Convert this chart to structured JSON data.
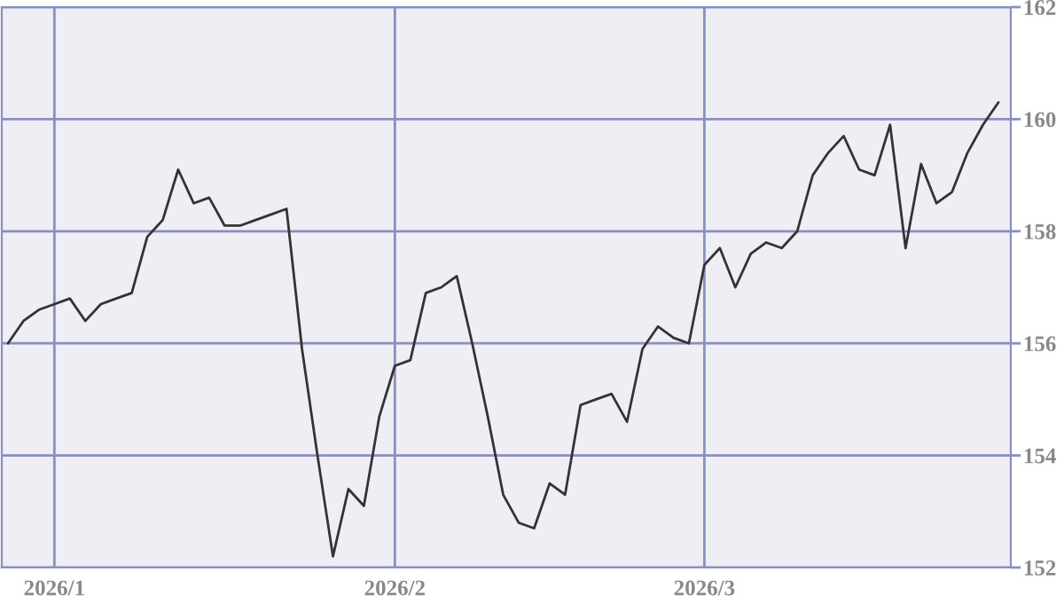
{
  "chart_data": {
    "type": "line",
    "color": "#333333",
    "categories": [
      null,
      null,
      null,
      "2026/1",
      null,
      null,
      null,
      null,
      null,
      null,
      null,
      null,
      null,
      null,
      null,
      null,
      null,
      null,
      null,
      null,
      null,
      null,
      null,
      null,
      null,
      "2026/2",
      null,
      null,
      null,
      null,
      null,
      null,
      null,
      null,
      null,
      null,
      null,
      null,
      null,
      null,
      null,
      null,
      null,
      null,
      null,
      "2026/3",
      null,
      null,
      null,
      null,
      null,
      null,
      null,
      null,
      null,
      null,
      null,
      null,
      null,
      null,
      null,
      null,
      null,
      null,
      null
    ],
    "values": [
      156.0,
      156.4,
      156.6,
      156.7,
      156.8,
      156.4,
      156.7,
      156.8,
      156.9,
      157.9,
      158.2,
      159.1,
      158.5,
      158.6,
      158.1,
      158.1,
      158.2,
      158.3,
      158.4,
      155.9,
      154.0,
      152.2,
      153.4,
      153.1,
      154.7,
      155.6,
      155.7,
      156.9,
      157.0,
      157.2,
      156.0,
      154.7,
      153.3,
      152.8,
      152.7,
      153.5,
      153.3,
      154.9,
      155.0,
      155.1,
      154.6,
      155.9,
      156.3,
      156.1,
      156.0,
      157.4,
      157.7,
      157.0,
      157.6,
      157.8,
      157.7,
      158.0,
      159.0,
      159.4,
      159.7,
      159.1,
      159.0,
      159.9,
      157.7,
      159.2,
      158.5,
      158.7,
      159.4,
      159.9,
      160.3
    ],
    "ylim": [
      152,
      162
    ],
    "yticks": [
      152,
      154,
      156,
      158,
      160,
      162
    ],
    "grid": true,
    "marker": "none",
    "line_style": "solid"
  }
}
